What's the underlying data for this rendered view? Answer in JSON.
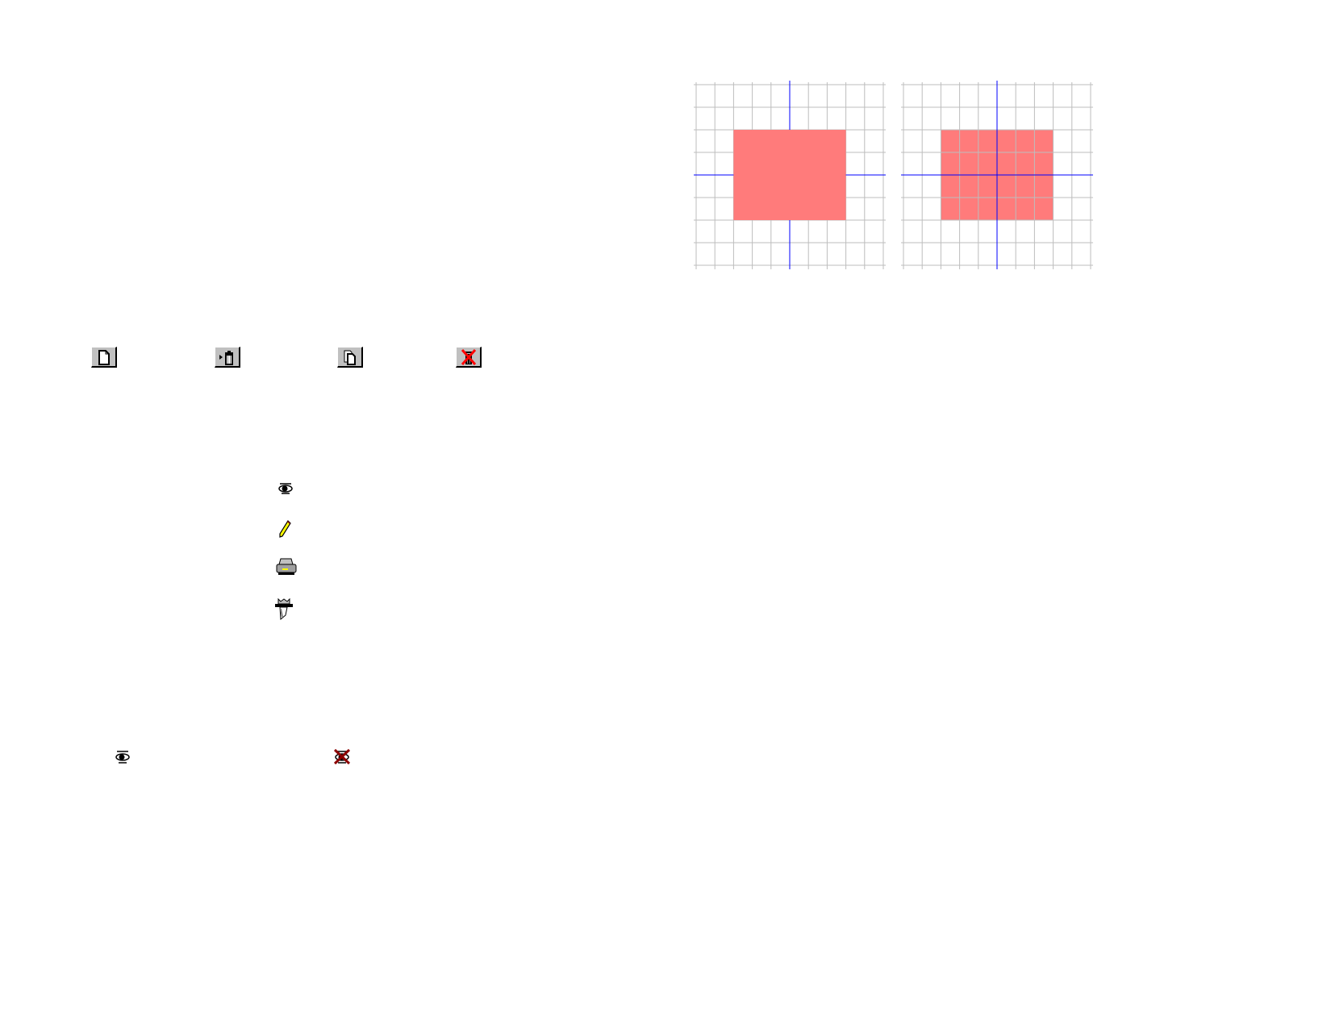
{
  "colors": {
    "grid_line": "#bdbdbd",
    "axis_line": "#0000ff",
    "rectangle_fill": "#ff7b7b",
    "button_face": "#c0c0c0",
    "cross_red": "#ff0000",
    "cross_dark_red": "#8b0000"
  },
  "grid_panels": [
    {
      "label_id": "rectangle-over-grid",
      "rectangle_covers_grid": true
    },
    {
      "label_id": "rectangle-under-grid",
      "rectangle_covers_grid": false
    }
  ],
  "toolbar_buttons": [
    {
      "icon": "new-page-icon"
    },
    {
      "icon": "move-to-trash-icon"
    },
    {
      "icon": "copy-pages-icon"
    },
    {
      "icon": "no-delete-trash-icon"
    }
  ],
  "icon_column": [
    {
      "icon": "eye-icon"
    },
    {
      "icon": "pencil-icon"
    },
    {
      "icon": "printer-icon"
    },
    {
      "icon": "stamp-icon"
    }
  ],
  "bottom_icons": [
    {
      "icon": "eye-icon"
    },
    {
      "icon": "hidden-eye-icon"
    }
  ]
}
